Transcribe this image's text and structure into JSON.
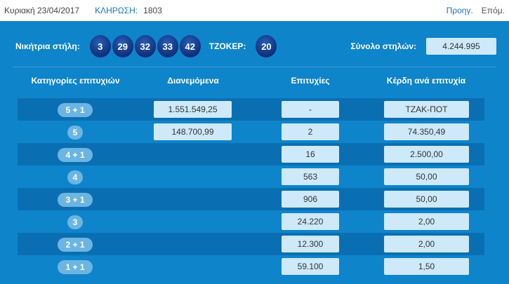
{
  "header": {
    "date": "Κυριακή 23/04/2017",
    "draw_label": "ΚΛΗΡΩΣΗ:",
    "draw_number": "1803",
    "prev": "Προηγ.",
    "next": "Επόμ."
  },
  "winning": {
    "label": "Νικήτρια στήλη:",
    "numbers": [
      "3",
      "29",
      "32",
      "33",
      "42"
    ],
    "joker_label": "ΤΖΟΚΕΡ:",
    "joker": "20",
    "total_label": "Σύνολο στηλών:",
    "total": "4.244.995"
  },
  "columns": [
    "Κατηγορίες επιτυχιών",
    "Διανεμόμενα",
    "Επιτυχίες",
    "Κέρδη ανά επιτυχία"
  ],
  "rows": [
    {
      "category": "5 + 1",
      "distributed": "1.551.549,25",
      "winners": "-",
      "prize": "ΤΖΑΚ-ΠΟΤ"
    },
    {
      "category": "5",
      "distributed": "148.700,99",
      "winners": "2",
      "prize": "74.350,49"
    },
    {
      "category": "4 + 1",
      "winners": "16",
      "prize": "2.500,00"
    },
    {
      "category": "4",
      "winners": "563",
      "prize": "50,00"
    },
    {
      "category": "3 + 1",
      "winners": "906",
      "prize": "50,00"
    },
    {
      "category": "3",
      "winners": "24.220",
      "prize": "2,00"
    },
    {
      "category": "2 + 1",
      "winners": "12.300",
      "prize": "2,00"
    },
    {
      "category": "1 + 1",
      "winners": "59.100",
      "prize": "1,50"
    }
  ]
}
